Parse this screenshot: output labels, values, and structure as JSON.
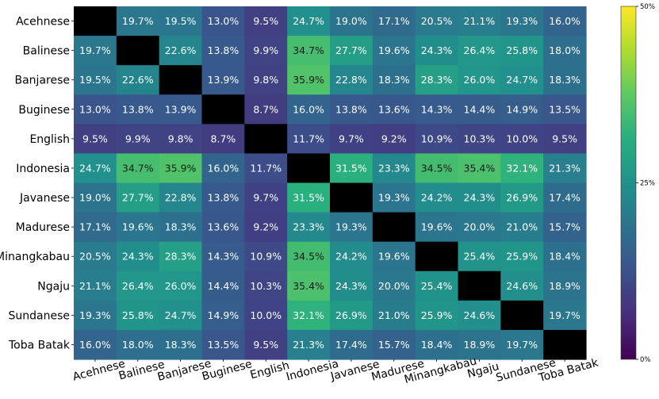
{
  "chart_data": {
    "type": "heatmap",
    "title": "",
    "rows": [
      "Acehnese",
      "Balinese",
      "Banjarese",
      "Buginese",
      "English",
      "Indonesia",
      "Javanese",
      "Madurese",
      "Minangkabau",
      "Ngaju",
      "Sundanese",
      "Toba Batak"
    ],
    "columns": [
      "Acehnese",
      "Balinese",
      "Banjarese",
      "Buginese",
      "English",
      "Indonesia",
      "Javanese",
      "Madurese",
      "Minangkabau",
      "Ngaju",
      "Sundanese",
      "Toba Batak"
    ],
    "values": [
      [
        null,
        19.7,
        19.5,
        13.0,
        9.5,
        24.7,
        19.0,
        17.1,
        20.5,
        21.1,
        19.3,
        16.0
      ],
      [
        19.7,
        null,
        22.6,
        13.8,
        9.9,
        34.7,
        27.7,
        19.6,
        24.3,
        26.4,
        25.8,
        18.0
      ],
      [
        19.5,
        22.6,
        null,
        13.9,
        9.8,
        35.9,
        22.8,
        18.3,
        28.3,
        26.0,
        24.7,
        18.3
      ],
      [
        13.0,
        13.8,
        13.9,
        null,
        8.7,
        16.0,
        13.8,
        13.6,
        14.3,
        14.4,
        14.9,
        13.5
      ],
      [
        9.5,
        9.9,
        9.8,
        8.7,
        null,
        11.7,
        9.7,
        9.2,
        10.9,
        10.3,
        10.0,
        9.5
      ],
      [
        24.7,
        34.7,
        35.9,
        16.0,
        11.7,
        null,
        31.5,
        23.3,
        34.5,
        35.4,
        32.1,
        21.3
      ],
      [
        19.0,
        27.7,
        22.8,
        13.8,
        9.7,
        31.5,
        null,
        19.3,
        24.2,
        24.3,
        26.9,
        17.4
      ],
      [
        17.1,
        19.6,
        18.3,
        13.6,
        9.2,
        23.3,
        19.3,
        null,
        19.6,
        20.0,
        21.0,
        15.7
      ],
      [
        20.5,
        24.3,
        28.3,
        14.3,
        10.9,
        34.5,
        24.2,
        19.6,
        null,
        25.4,
        25.9,
        18.4
      ],
      [
        21.1,
        26.4,
        26.0,
        14.4,
        10.3,
        35.4,
        24.3,
        20.0,
        25.4,
        null,
        24.6,
        18.9
      ],
      [
        19.3,
        25.8,
        24.7,
        14.9,
        10.0,
        32.1,
        26.9,
        21.0,
        25.9,
        24.6,
        null,
        19.7
      ],
      [
        16.0,
        18.0,
        18.3,
        13.5,
        9.5,
        21.3,
        17.4,
        15.7,
        18.4,
        18.9,
        19.7,
        null
      ]
    ],
    "value_suffix": "%",
    "diagonal_color": "#000000",
    "colormap": "viridis",
    "vmin": 0,
    "vmax": 50,
    "colorbar_ticks": [
      "0%",
      "25%",
      "50%"
    ],
    "colorbar_tick_values": [
      0,
      25,
      50
    ],
    "xtick_rotation": "rotated",
    "grid": false,
    "legend": "colorbar-right"
  }
}
